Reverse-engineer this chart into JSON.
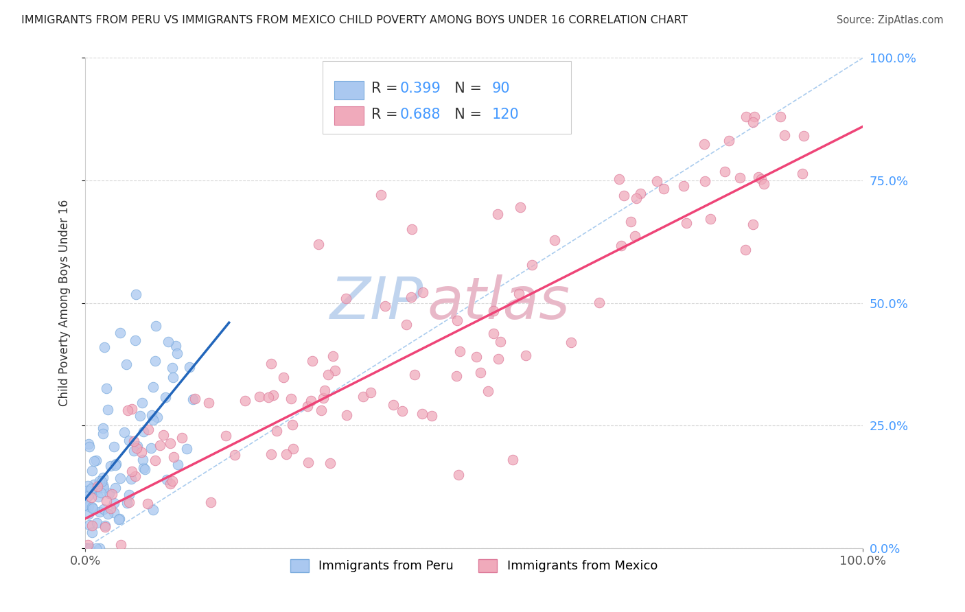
{
  "title": "IMMIGRANTS FROM PERU VS IMMIGRANTS FROM MEXICO CHILD POVERTY AMONG BOYS UNDER 16 CORRELATION CHART",
  "source": "Source: ZipAtlas.com",
  "ylabel": "Child Poverty Among Boys Under 16",
  "xlim": [
    0,
    1.0
  ],
  "ylim": [
    0,
    1.0
  ],
  "ytick_positions": [
    0.0,
    0.25,
    0.5,
    0.75,
    1.0
  ],
  "right_ytick_labels": [
    "0.0%",
    "25.0%",
    "50.0%",
    "75.0%",
    "100.0%"
  ],
  "peru_R": 0.399,
  "peru_N": 90,
  "mexico_R": 0.688,
  "mexico_N": 120,
  "peru_color": "#aac8f0",
  "peru_edge_color": "#7aabdd",
  "mexico_color": "#f0aabb",
  "mexico_edge_color": "#dd7a99",
  "peru_line_color": "#2266bb",
  "mexico_line_color": "#ee4477",
  "diag_color": "#aaccee",
  "watermark_zip_color": "#c0d4ee",
  "watermark_atlas_color": "#e8b8c8",
  "grid_color": "#cccccc",
  "background_color": "#ffffff",
  "right_axis_color": "#4499ff",
  "peru_line_x0": 0.0,
  "peru_line_x1": 0.185,
  "peru_line_y0": 0.1,
  "peru_line_y1": 0.46,
  "mexico_line_x0": 0.0,
  "mexico_line_x1": 1.0,
  "mexico_line_y0": 0.06,
  "mexico_line_y1": 0.86
}
